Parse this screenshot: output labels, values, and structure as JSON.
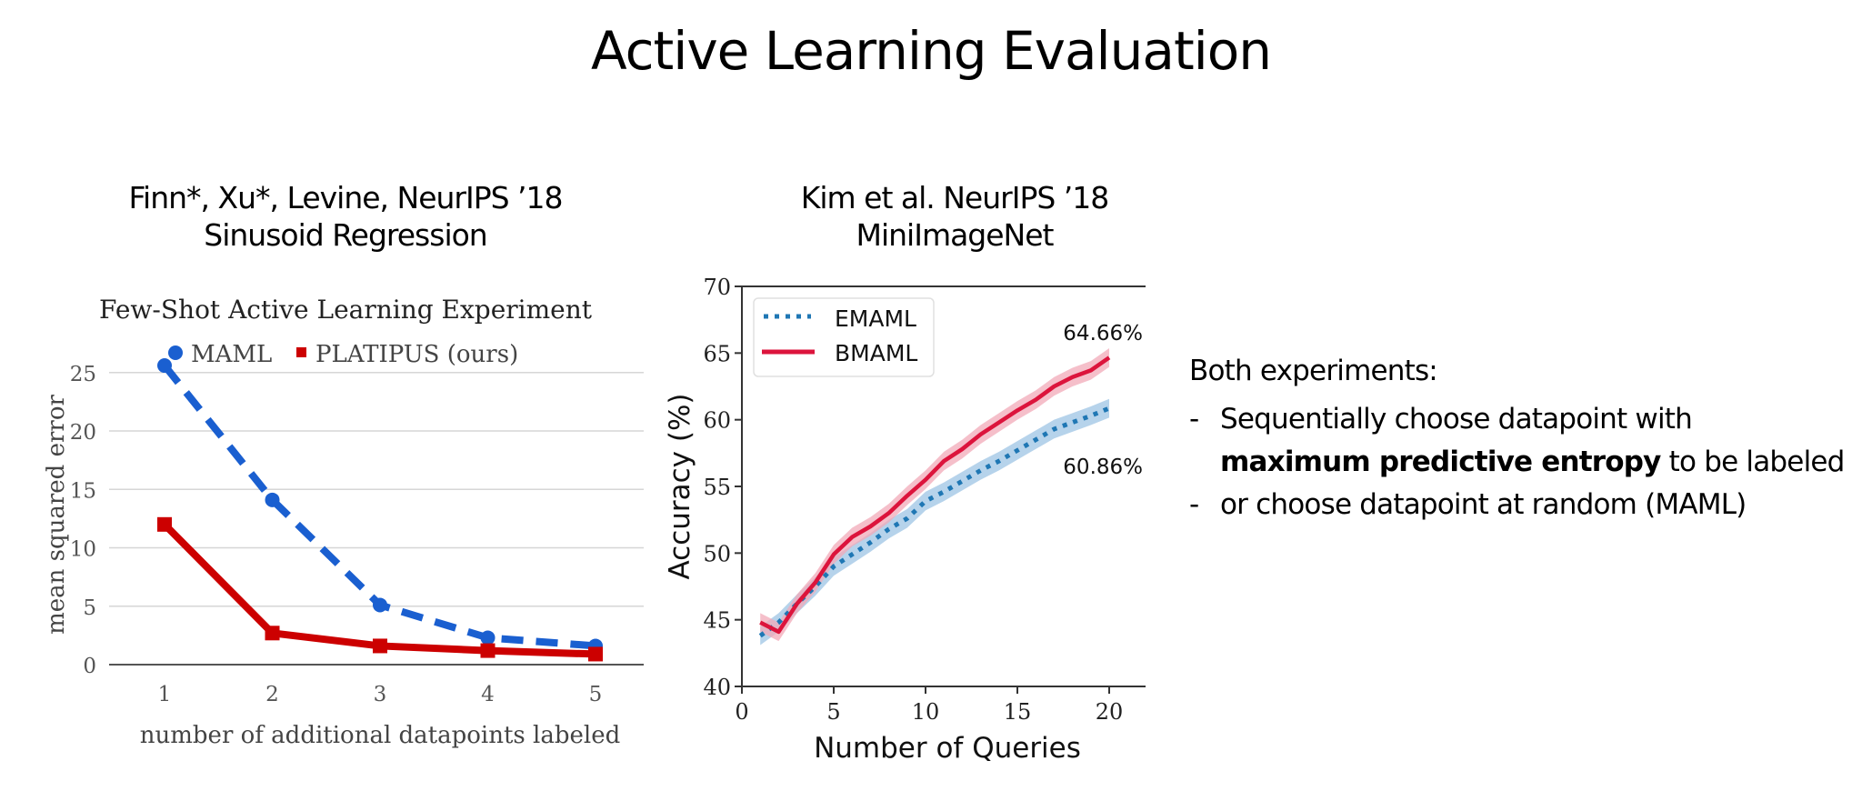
{
  "slide": {
    "title": "Active Learning Evaluation"
  },
  "left_panel": {
    "citation": "Finn*, Xu*, Levine, NeurIPS ’18",
    "task": "Sinusoid Regression"
  },
  "right_panel": {
    "citation": "Kim et al. NeurIPS ’18",
    "task": "MiniImageNet"
  },
  "notes": {
    "heading": "Both experiments:",
    "bullets": [
      {
        "dash": "-",
        "text_plain": "Sequentially choose datapoint with",
        "text_bold": "maximum predictive entropy",
        "text_after": " to be labeled"
      },
      {
        "dash": "-",
        "text_plain": "or choose datapoint at random (MAML)"
      }
    ]
  },
  "chart_data": [
    {
      "type": "line",
      "title": "Few-Shot Active Learning Experiment",
      "xlabel": "number of additional datapoints labeled",
      "ylabel": "mean squared error",
      "x": [
        1,
        2,
        3,
        4,
        5
      ],
      "ylim": [
        0,
        27
      ],
      "yticks": [
        0,
        5,
        10,
        15,
        20,
        25
      ],
      "xticks": [
        1,
        2,
        3,
        4,
        5
      ],
      "grid": true,
      "legend_position": "top",
      "series": [
        {
          "name": "MAML",
          "color": "#1a5fd0",
          "style": "dashed",
          "marker": "circle",
          "values": [
            25.6,
            14.1,
            5.1,
            2.3,
            1.6
          ]
        },
        {
          "name": "PLATIPUS (ours)",
          "color": "#cc0000",
          "style": "solid",
          "marker": "square",
          "values": [
            12.0,
            2.7,
            1.6,
            1.2,
            0.9
          ]
        }
      ]
    },
    {
      "type": "line",
      "title": "",
      "xlabel": "Number of Queries",
      "ylabel": "Accuracy (%)",
      "x": [
        1,
        2,
        3,
        4,
        5,
        6,
        7,
        8,
        9,
        10,
        11,
        12,
        13,
        14,
        15,
        16,
        17,
        18,
        19,
        20
      ],
      "xlim": [
        0,
        20.9
      ],
      "ylim": [
        40,
        70
      ],
      "xticks": [
        0,
        5,
        10,
        15,
        20
      ],
      "yticks": [
        40,
        45,
        50,
        55,
        60,
        65,
        70
      ],
      "grid": false,
      "legend_position": "top-left",
      "series": [
        {
          "name": "EMAML",
          "color": "#1f77b4",
          "band_color": "#9ec4e4",
          "style": "dotted",
          "values": [
            43.8,
            44.8,
            46.2,
            47.5,
            49.0,
            49.9,
            50.8,
            51.8,
            52.6,
            53.9,
            54.6,
            55.4,
            56.2,
            56.9,
            57.7,
            58.5,
            59.3,
            59.8,
            60.3,
            60.86
          ]
        },
        {
          "name": "BMAML",
          "color": "#dc143c",
          "band_color": "#f2a9b8",
          "style": "solid",
          "values": [
            44.8,
            44.1,
            46.2,
            47.8,
            49.9,
            51.2,
            52.0,
            53.0,
            54.3,
            55.5,
            56.9,
            57.8,
            58.9,
            59.8,
            60.7,
            61.5,
            62.5,
            63.2,
            63.7,
            64.66
          ]
        }
      ],
      "annotations": [
        {
          "text": "64.66%",
          "series": "BMAML",
          "x": 20
        },
        {
          "text": "60.86%",
          "series": "EMAML",
          "x": 20
        }
      ]
    }
  ]
}
